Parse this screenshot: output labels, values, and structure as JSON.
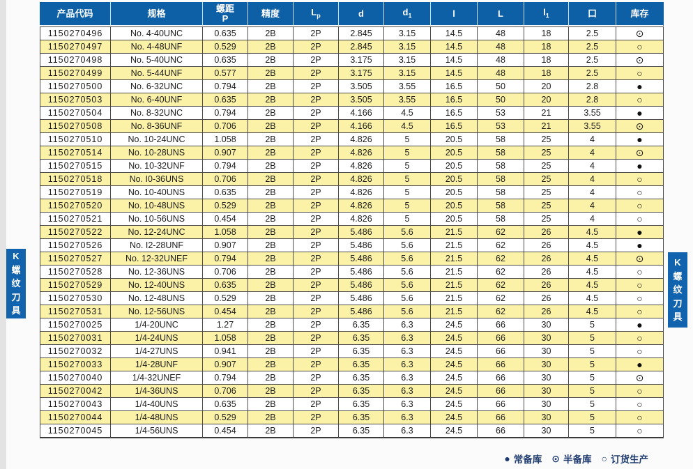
{
  "colors": {
    "page_bg": "#fbfbfb",
    "strip_bg": "#e3e3e3",
    "header_bg": "#0d5fa6",
    "stripe": "#fbf2a7",
    "tab_bg": "#1263ad",
    "grid": "#4a4a4a",
    "legend_text": "#1e3a6e",
    "symbol": "#111111"
  },
  "side_tab": {
    "text": "K螺纹刀具"
  },
  "header": {
    "c0": "产品代码",
    "c1": "规格",
    "c2a": "螺距",
    "c2b": "P",
    "c3": "精度",
    "c4a": "L",
    "c4b": "p",
    "c5": "d",
    "c6a": "d",
    "c6b": "1",
    "c7": "l",
    "c8": "L",
    "c9a": "l",
    "c9b": "1",
    "c10": "口",
    "c11": "库存"
  },
  "table": {
    "rows": [
      [
        "1150270496",
        "No. 4-40UNC",
        "0.635",
        "2B",
        "2P",
        "2.845",
        "3.15",
        "14.5",
        "48",
        "18",
        "2.5",
        "⊙"
      ],
      [
        "1150270497",
        "No. 4-48UNF",
        "0.529",
        "2B",
        "2P",
        "2.845",
        "3.15",
        "14.5",
        "48",
        "18",
        "2.5",
        "○"
      ],
      [
        "1150270498",
        "No. 5-40UNC",
        "0.635",
        "2B",
        "2P",
        "3.175",
        "3.15",
        "14.5",
        "48",
        "18",
        "2.5",
        "⊙"
      ],
      [
        "1150270499",
        "No. 5-44UNF",
        "0.577",
        "2B",
        "2P",
        "3.175",
        "3.15",
        "14.5",
        "48",
        "18",
        "2.5",
        "○"
      ],
      [
        "1150270500",
        "No. 6-32UNC",
        "0.794",
        "2B",
        "2P",
        "3.505",
        "3.55",
        "16.5",
        "50",
        "20",
        "2.8",
        "●"
      ],
      [
        "1150270503",
        "No. 6-40UNF",
        "0.635",
        "2B",
        "2P",
        "3.505",
        "3.55",
        "16.5",
        "50",
        "20",
        "2.8",
        "○"
      ],
      [
        "1150270504",
        "No. 8-32UNC",
        "0.794",
        "2B",
        "2P",
        "4.166",
        "4.5",
        "16.5",
        "53",
        "21",
        "3.55",
        "●"
      ],
      [
        "1150270508",
        "No. 8-36UNF",
        "0.706",
        "2B",
        "2P",
        "4.166",
        "4.5",
        "16.5",
        "53",
        "21",
        "3.55",
        "⊙"
      ],
      [
        "1150270510",
        "No. 10-24UNC",
        "1.058",
        "2B",
        "2P",
        "4.826",
        "5",
        "20.5",
        "58",
        "25",
        "4",
        "●"
      ],
      [
        "1150270514",
        "No. 10-28UNS",
        "0.907",
        "2B",
        "2P",
        "4.826",
        "5",
        "20.5",
        "58",
        "25",
        "4",
        "⊙"
      ],
      [
        "1150270515",
        "No. 10-32UNF",
        "0.794",
        "2B",
        "2P",
        "4.826",
        "5",
        "20.5",
        "58",
        "25",
        "4",
        "●"
      ],
      [
        "1150270518",
        "No. I0-36UNS",
        "0.706",
        "2B",
        "2P",
        "4.826",
        "5",
        "20.5",
        "58",
        "25",
        "4",
        "○"
      ],
      [
        "1150270519",
        "No. 10-40UNS",
        "0.635",
        "2B",
        "2P",
        "4.826",
        "5",
        "20.5",
        "58",
        "25",
        "4",
        "○"
      ],
      [
        "1150270520",
        "No. 10-48UNS",
        "0.529",
        "2B",
        "2P",
        "4.826",
        "5",
        "20.5",
        "58",
        "25",
        "4",
        "○"
      ],
      [
        "1150270521",
        "No. 10-56UNS",
        "0.454",
        "2B",
        "2P",
        "4.826",
        "5",
        "20.5",
        "58",
        "25",
        "4",
        "○"
      ],
      [
        "1150270522",
        "No. 12-24UNC",
        "1.058",
        "2B",
        "2P",
        "5.486",
        "5.6",
        "21.5",
        "62",
        "26",
        "4.5",
        "●"
      ],
      [
        "1150270526",
        "No. I2-28UNF",
        "0.907",
        "2B",
        "2P",
        "5.486",
        "5.6",
        "21.5",
        "62",
        "26",
        "4.5",
        "●"
      ],
      [
        "1150270527",
        "No. 12-32UNEF",
        "0.794",
        "2B",
        "2P",
        "5.486",
        "5.6",
        "21.5",
        "62",
        "26",
        "4.5",
        "⊙"
      ],
      [
        "1150270528",
        "No. 12-36UNS",
        "0.706",
        "2B",
        "2P",
        "5.486",
        "5.6",
        "21.5",
        "62",
        "26",
        "4.5",
        "○"
      ],
      [
        "1150270529",
        "No. 12-40UNS",
        "0.635",
        "2B",
        "2P",
        "5.486",
        "5.6",
        "21.5",
        "62",
        "26",
        "4.5",
        "○"
      ],
      [
        "1150270530",
        "No. 12-48UNS",
        "0.529",
        "2B",
        "2P",
        "5.486",
        "5.6",
        "21.5",
        "62",
        "26",
        "4.5",
        "○"
      ],
      [
        "1150270531",
        "No. 12-56UNS",
        "0.454",
        "2B",
        "2P",
        "5.486",
        "5.6",
        "21.5",
        "62",
        "26",
        "4.5",
        "○"
      ],
      [
        "1150270025",
        "1/4-20UNC",
        "1.27",
        "2B",
        "2P",
        "6.35",
        "6.3",
        "24.5",
        "66",
        "30",
        "5",
        "●"
      ],
      [
        "1150270031",
        "1/4-24UNS",
        "1.058",
        "2B",
        "2P",
        "6.35",
        "6.3",
        "24.5",
        "66",
        "30",
        "5",
        "○"
      ],
      [
        "1150270032",
        "1/4-27UNS",
        "0.941",
        "2B",
        "2P",
        "6.35",
        "6.3",
        "24.5",
        "66",
        "30",
        "5",
        "○"
      ],
      [
        "1150270033",
        "1/4-28UNF",
        "0.907",
        "2B",
        "2P",
        "6.35",
        "6.3",
        "24.5",
        "66",
        "30",
        "5",
        "●"
      ],
      [
        "1150270040",
        "1/4-32UNEF",
        "0.794",
        "2B",
        "2P",
        "6.35",
        "6.3",
        "24.5",
        "66",
        "30",
        "5",
        "⊙"
      ],
      [
        "1150270042",
        "1/4-36UNS",
        "0.706",
        "2B",
        "2P",
        "6.35",
        "6.3",
        "24.5",
        "66",
        "30",
        "5",
        "○"
      ],
      [
        "1150270043",
        "1/4-40UNS",
        "0.635",
        "2B",
        "2P",
        "6.35",
        "6.3",
        "24.5",
        "66",
        "30",
        "5",
        "○"
      ],
      [
        "1150270044",
        "1/4-48UNS",
        "0.529",
        "2B",
        "2P",
        "6.35",
        "6.3",
        "24.5",
        "66",
        "30",
        "5",
        "○"
      ],
      [
        "1150270045",
        "1/4-56UNS",
        "0.454",
        "2B",
        "2P",
        "6.35",
        "6.3",
        "24.5",
        "66",
        "30",
        "5",
        "○"
      ]
    ]
  },
  "legend": {
    "items": [
      {
        "symbol": "●",
        "label": "常备库"
      },
      {
        "symbol": "⊙",
        "label": "半备库"
      },
      {
        "symbol": "○",
        "label": "订货生产"
      }
    ]
  }
}
